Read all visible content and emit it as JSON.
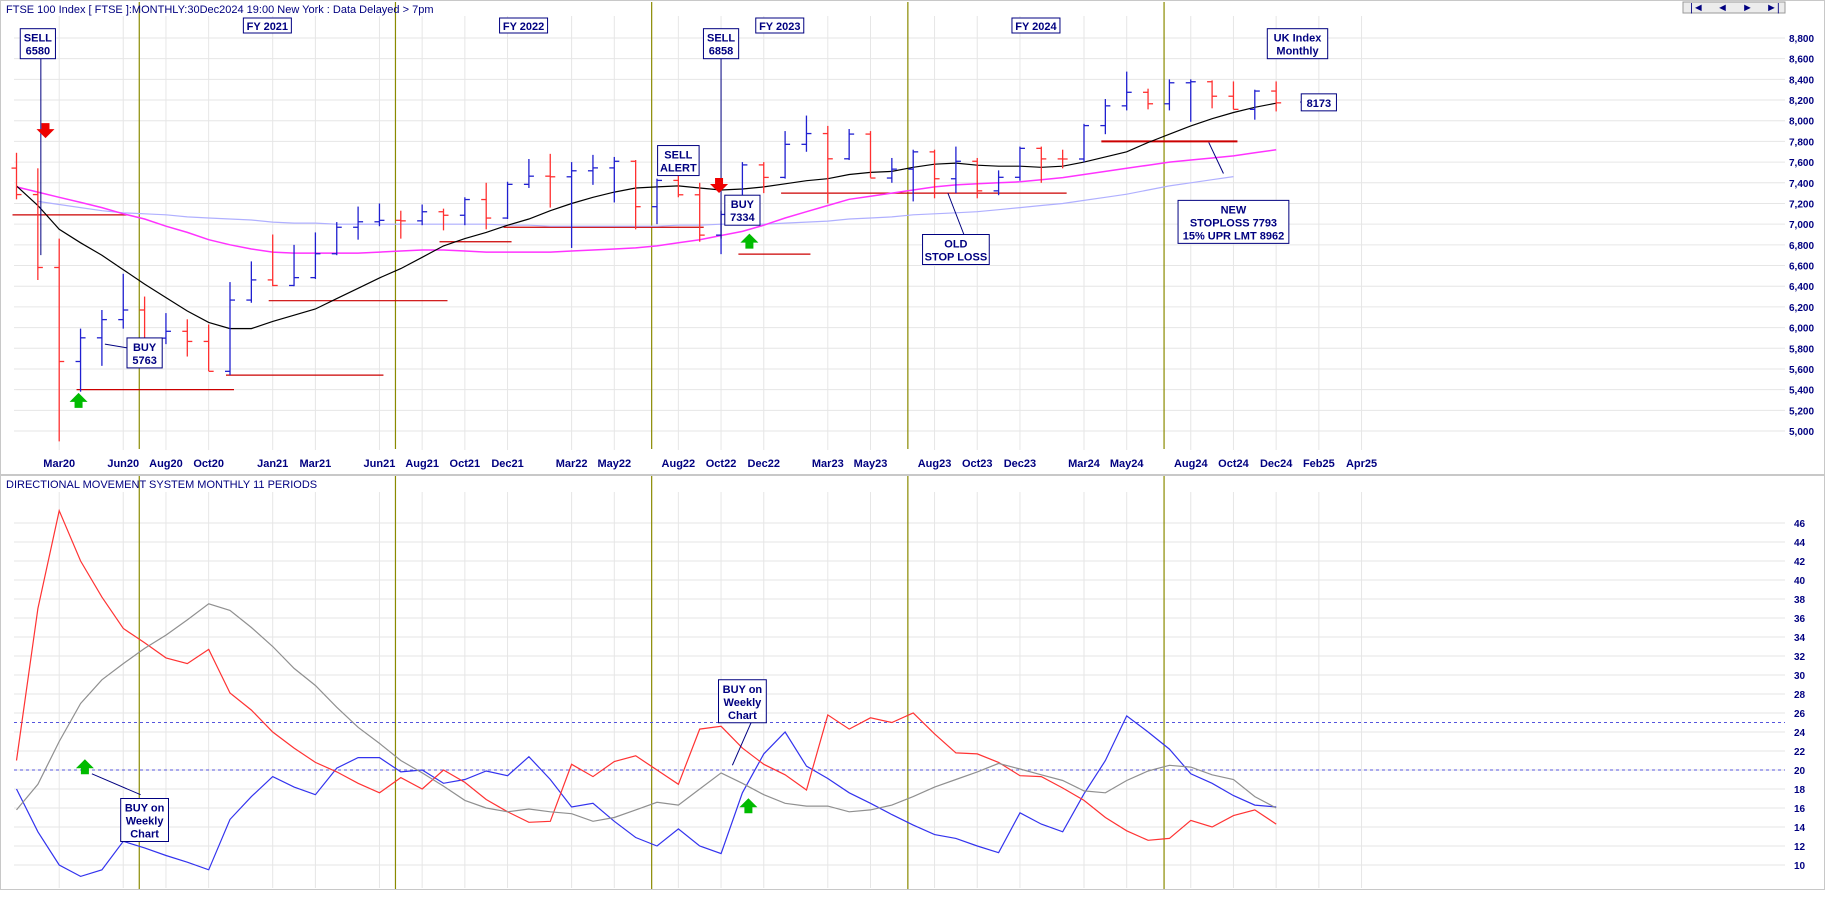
{
  "header": {
    "title": "FTSE 100 Index [ FTSE ]:MONTHLY:30Dec2024 19:00 New York : Data Delayed > 7pm",
    "lower_title": "DIRECTIONAL MOVEMENT SYSTEM MONTHLY 11 PERIODS"
  },
  "nav": {
    "first": "|◄",
    "prev": "◄",
    "next": "►",
    "last": "►|"
  },
  "colors": {
    "background": "#ffffff",
    "grid": "#e6e6e6",
    "axis_text": "#000080",
    "fy_line": "#8a8a00",
    "up_bar": "#2020d0",
    "down_bar": "#ff3030",
    "ma_short": "#000000",
    "ma_mid": "#ff33ff",
    "ma_long": "#b0b0ff",
    "stop_line": "#cc0000",
    "plus_di": "#3333ee",
    "minus_di": "#ff3333",
    "adx": "#909090",
    "dotted_ref": "#5555dd",
    "arrow_up": "#00bb00",
    "arrow_down": "#ee0000"
  },
  "chart_data": [
    {
      "type": "line",
      "title": "FTSE 100 Index [ FTSE ]:MONTHLY:30Dec2024 19:00 New York : Data Delayed > 7pm",
      "price_type": "ohlc-bars",
      "x_ticks": [
        "Mar20",
        "Jun20",
        "Aug20",
        "Oct20",
        "Jan21",
        "Mar21",
        "Jun21",
        "Aug21",
        "Oct21",
        "Dec21",
        "Mar22",
        "May22",
        "Aug22",
        "Oct22",
        "Dec22",
        "Mar23",
        "May23",
        "Aug23",
        "Oct23",
        "Dec23",
        "Mar24",
        "May24",
        "Aug24",
        "Oct24",
        "Dec24",
        "Feb25",
        "Apr25"
      ],
      "ylim": [
        4700,
        9000
      ],
      "y_ticks": [
        "5,000",
        "5,200",
        "5,400",
        "5,600",
        "5,800",
        "6,000",
        "6,200",
        "6,400",
        "6,600",
        "6,800",
        "7,000",
        "7,200",
        "7,400",
        "7,600",
        "7,800",
        "8,000",
        "8,200",
        "8,400",
        "8,600",
        "8,800"
      ],
      "bars": [
        {
          "d": "Jan20",
          "o": 7542,
          "h": 7690,
          "l": 7240,
          "c": 7286
        },
        {
          "d": "Feb20",
          "o": 7286,
          "h": 7540,
          "l": 6460,
          "c": 6581
        },
        {
          "d": "Mar20",
          "o": 6581,
          "h": 6860,
          "l": 4900,
          "c": 5672
        },
        {
          "d": "Apr20",
          "o": 5672,
          "h": 5990,
          "l": 5380,
          "c": 5901
        },
        {
          "d": "May20",
          "o": 5901,
          "h": 6170,
          "l": 5630,
          "c": 6077
        },
        {
          "d": "Jun20",
          "o": 6077,
          "h": 6520,
          "l": 5990,
          "c": 6170
        },
        {
          "d": "Jul20",
          "o": 6170,
          "h": 6300,
          "l": 5870,
          "c": 5898
        },
        {
          "d": "Aug20",
          "o": 5898,
          "h": 6140,
          "l": 5840,
          "c": 5964
        },
        {
          "d": "Sep20",
          "o": 5964,
          "h": 6080,
          "l": 5720,
          "c": 5866
        },
        {
          "d": "Oct20",
          "o": 5866,
          "h": 6030,
          "l": 5580,
          "c": 5577
        },
        {
          "d": "Nov20",
          "o": 5577,
          "h": 6440,
          "l": 5540,
          "c": 6266
        },
        {
          "d": "Dec20",
          "o": 6266,
          "h": 6640,
          "l": 6240,
          "c": 6461
        },
        {
          "d": "Jan21",
          "o": 6461,
          "h": 6900,
          "l": 6400,
          "c": 6407
        },
        {
          "d": "Feb21",
          "o": 6407,
          "h": 6800,
          "l": 6400,
          "c": 6483
        },
        {
          "d": "Mar21",
          "o": 6483,
          "h": 6920,
          "l": 6470,
          "c": 6714
        },
        {
          "d": "Apr21",
          "o": 6714,
          "h": 7020,
          "l": 6700,
          "c": 6970
        },
        {
          "d": "May21",
          "o": 6970,
          "h": 7170,
          "l": 6850,
          "c": 7023
        },
        {
          "d": "Jun21",
          "o": 7023,
          "h": 7200,
          "l": 6980,
          "c": 7037
        },
        {
          "d": "Jul21",
          "o": 7037,
          "h": 7130,
          "l": 6860,
          "c": 7032
        },
        {
          "d": "Aug21",
          "o": 7032,
          "h": 7190,
          "l": 6990,
          "c": 7120
        },
        {
          "d": "Sep21",
          "o": 7120,
          "h": 7150,
          "l": 6940,
          "c": 7086
        },
        {
          "d": "Oct21",
          "o": 7086,
          "h": 7260,
          "l": 6990,
          "c": 7238
        },
        {
          "d": "Nov21",
          "o": 7238,
          "h": 7400,
          "l": 6950,
          "c": 7059
        },
        {
          "d": "Dec21",
          "o": 7059,
          "h": 7410,
          "l": 7050,
          "c": 7385
        },
        {
          "d": "Jan22",
          "o": 7385,
          "h": 7630,
          "l": 7350,
          "c": 7464
        },
        {
          "d": "Feb22",
          "o": 7464,
          "h": 7680,
          "l": 7160,
          "c": 7458
        },
        {
          "d": "Mar22",
          "o": 7458,
          "h": 7600,
          "l": 6770,
          "c": 7516
        },
        {
          "d": "Apr22",
          "o": 7516,
          "h": 7670,
          "l": 7380,
          "c": 7544
        },
        {
          "d": "May22",
          "o": 7544,
          "h": 7650,
          "l": 7210,
          "c": 7608
        },
        {
          "d": "Jun22",
          "o": 7608,
          "h": 7620,
          "l": 6950,
          "c": 7169
        },
        {
          "d": "Jul22",
          "o": 7169,
          "h": 7440,
          "l": 7000,
          "c": 7423
        },
        {
          "d": "Aug22",
          "o": 7423,
          "h": 7560,
          "l": 7260,
          "c": 7284
        },
        {
          "d": "Sep22",
          "o": 7284,
          "h": 7400,
          "l": 6830,
          "c": 6894
        },
        {
          "d": "Oct22",
          "o": 6894,
          "h": 7130,
          "l": 6710,
          "c": 7094
        },
        {
          "d": "Nov22",
          "o": 7094,
          "h": 7600,
          "l": 7060,
          "c": 7573
        },
        {
          "d": "Dec22",
          "o": 7573,
          "h": 7600,
          "l": 7300,
          "c": 7452
        },
        {
          "d": "Jan23",
          "o": 7452,
          "h": 7900,
          "l": 7440,
          "c": 7772
        },
        {
          "d": "Feb23",
          "o": 7772,
          "h": 8050,
          "l": 7700,
          "c": 7876
        },
        {
          "d": "Mar23",
          "o": 7876,
          "h": 7950,
          "l": 7200,
          "c": 7632
        },
        {
          "d": "Apr23",
          "o": 7632,
          "h": 7920,
          "l": 7620,
          "c": 7871
        },
        {
          "d": "May23",
          "o": 7871,
          "h": 7900,
          "l": 7450,
          "c": 7446
        },
        {
          "d": "Jun23",
          "o": 7446,
          "h": 7640,
          "l": 7400,
          "c": 7532
        },
        {
          "d": "Jul23",
          "o": 7532,
          "h": 7720,
          "l": 7220,
          "c": 7699
        },
        {
          "d": "Aug23",
          "o": 7699,
          "h": 7720,
          "l": 7250,
          "c": 7439
        },
        {
          "d": "Sep23",
          "o": 7439,
          "h": 7750,
          "l": 7300,
          "c": 7608
        },
        {
          "d": "Oct23",
          "o": 7608,
          "h": 7640,
          "l": 7250,
          "c": 7322
        },
        {
          "d": "Nov23",
          "o": 7322,
          "h": 7520,
          "l": 7280,
          "c": 7453
        },
        {
          "d": "Dec23",
          "o": 7453,
          "h": 7750,
          "l": 7420,
          "c": 7733
        },
        {
          "d": "Jan24",
          "o": 7733,
          "h": 7750,
          "l": 7400,
          "c": 7631
        },
        {
          "d": "Feb24",
          "o": 7631,
          "h": 7720,
          "l": 7540,
          "c": 7630
        },
        {
          "d": "Mar24",
          "o": 7630,
          "h": 7970,
          "l": 7600,
          "c": 7953
        },
        {
          "d": "Apr24",
          "o": 7953,
          "h": 8210,
          "l": 7870,
          "c": 8144
        },
        {
          "d": "May24",
          "o": 8144,
          "h": 8475,
          "l": 8100,
          "c": 8275
        },
        {
          "d": "Jun24",
          "o": 8275,
          "h": 8310,
          "l": 8110,
          "c": 8164
        },
        {
          "d": "Jul24",
          "o": 8164,
          "h": 8400,
          "l": 8100,
          "c": 8367
        },
        {
          "d": "Aug24",
          "o": 8367,
          "h": 8400,
          "l": 7990,
          "c": 8377
        },
        {
          "d": "Sep24",
          "o": 8377,
          "h": 8390,
          "l": 8120,
          "c": 8237
        },
        {
          "d": "Oct24",
          "o": 8237,
          "h": 8380,
          "l": 8110,
          "c": 8110
        },
        {
          "d": "Nov24",
          "o": 8110,
          "h": 8300,
          "l": 8010,
          "c": 8287
        },
        {
          "d": "Dec24",
          "o": 8287,
          "h": 8380,
          "l": 8090,
          "c": 8173
        }
      ],
      "ma_short": {
        "start": "Jan20",
        "values": [
          7370,
          7180,
          6950,
          6820,
          6700,
          6560,
          6420,
          6290,
          6160,
          6050,
          5990,
          5990,
          6060,
          6120,
          6180,
          6280,
          6380,
          6480,
          6570,
          6680,
          6790,
          6860,
          6920,
          6990,
          7050,
          7130,
          7200,
          7260,
          7310,
          7350,
          7360,
          7370,
          7350,
          7330,
          7340,
          7360,
          7390,
          7420,
          7440,
          7480,
          7500,
          7510,
          7550,
          7580,
          7590,
          7570,
          7560,
          7560,
          7550,
          7560,
          7600,
          7650,
          7700,
          7790,
          7870,
          7950,
          8020,
          8080,
          8130,
          8170
        ]
      },
      "ma_mid": {
        "start": "Jan20",
        "values": [
          7360,
          7310,
          7260,
          7210,
          7160,
          7100,
          7050,
          6980,
          6920,
          6850,
          6800,
          6760,
          6730,
          6720,
          6720,
          6720,
          6720,
          6730,
          6740,
          6750,
          6750,
          6740,
          6730,
          6730,
          6730,
          6730,
          6740,
          6750,
          6760,
          6770,
          6790,
          6820,
          6850,
          6890,
          6930,
          6990,
          7060,
          7120,
          7180,
          7240,
          7270,
          7300,
          7330,
          7360,
          7380,
          7390,
          7400,
          7410,
          7430,
          7450,
          7480,
          7510,
          7540,
          7570,
          7600,
          7620,
          7640,
          7660,
          7690,
          7720
        ]
      },
      "ma_long": {
        "start": "Feb20",
        "values": [
          7220,
          7190,
          7160,
          7130,
          7110,
          7100,
          7090,
          7070,
          7060,
          7050,
          7040,
          7020,
          7010,
          7010,
          7000,
          7000,
          7000,
          7000,
          7000,
          7000,
          7000,
          7000,
          6990,
          6990,
          6980,
          6980,
          6980,
          6980,
          6980,
          6980,
          6990,
          6990,
          7000,
          7000,
          7000,
          7010,
          7020,
          7030,
          7050,
          7060,
          7070,
          7090,
          7100,
          7110,
          7120,
          7140,
          7160,
          7180,
          7200,
          7230,
          7260,
          7290,
          7330,
          7370,
          7400,
          7430,
          7460
        ]
      },
      "stop_lines": [
        {
          "from": "Jan20",
          "to": "Jun20",
          "y": 7090
        },
        {
          "from": "Apr20",
          "to": "Nov20",
          "y": 5400
        },
        {
          "from": "Nov20",
          "to": "Jun21",
          "y": 5540
        },
        {
          "from": "Jan21",
          "to": "Sep21",
          "y": 6260
        },
        {
          "from": "Sep21",
          "to": "Dec21",
          "y": 6830
        },
        {
          "from": "Dec21",
          "to": "Sep22",
          "y": 6970
        },
        {
          "from": "Nov22",
          "to": "Feb23",
          "y": 6710
        },
        {
          "from": "Jan23",
          "to": "Feb24",
          "y": 7300
        },
        {
          "from": "Apr24",
          "to": "Oct24",
          "y": 7800
        }
      ],
      "annotations": [
        {
          "id": "sell_6580",
          "lines": [
            "SELL",
            "6580"
          ],
          "at": "Feb20",
          "y": 8890
        },
        {
          "id": "buy_5763",
          "lines": [
            "BUY",
            "5763"
          ],
          "at": "Jul20",
          "y": 5900
        },
        {
          "id": "sell_alert",
          "lines": [
            "SELL",
            "ALERT"
          ],
          "at": "Aug22",
          "y": 7760
        },
        {
          "id": "sell_6858",
          "lines": [
            "SELL",
            "6858"
          ],
          "at": "Oct22",
          "y": 8890
        },
        {
          "id": "buy_7334",
          "lines": [
            "BUY",
            "7334"
          ],
          "at": "Nov22",
          "y": 7280
        },
        {
          "id": "old_stop",
          "lines": [
            "OLD",
            "STOP LOSS"
          ],
          "at": "Sep23",
          "y": 6900
        },
        {
          "id": "new_stop",
          "lines": [
            "NEW",
            "STOPLOSS 7793",
            "15% UPR LMT 8962"
          ],
          "at": "Oct24",
          "y": 7230
        },
        {
          "id": "uk_index",
          "lines": [
            "UK Index",
            "Monthly"
          ],
          "at": "Jan25",
          "y": 8890
        },
        {
          "id": "last_price",
          "lines": [
            "8173"
          ],
          "at": "Feb25",
          "y": 8260
        }
      ],
      "fy_labels": [
        "FY 2021",
        "FY 2022",
        "FY 2023",
        "FY 2024"
      ]
    },
    {
      "type": "line",
      "title": "DIRECTIONAL MOVEMENT SYSTEM MONTHLY 11 PERIODS",
      "ylim": [
        7.5,
        50
      ],
      "y_ticks": [
        "10",
        "12",
        "14",
        "16",
        "18",
        "20",
        "22",
        "24",
        "26",
        "28",
        "30",
        "32",
        "34",
        "36",
        "38",
        "40",
        "42",
        "44",
        "46"
      ],
      "reference_lines": [
        20,
        25
      ],
      "series": [
        {
          "key": "plus_di",
          "values": [
            18.0,
            13.5,
            10.0,
            8.8,
            9.5,
            12.5,
            11.8,
            11.0,
            10.3,
            9.5,
            14.8,
            17.2,
            19.3,
            18.2,
            17.4,
            20.2,
            21.3,
            21.3,
            19.8,
            20.0,
            18.6,
            19.0,
            19.9,
            19.4,
            21.4,
            19.0,
            16.1,
            16.5,
            14.6,
            12.9,
            12.0,
            13.8,
            12.0,
            11.2,
            17.6,
            21.7,
            24.0,
            20.4,
            19.1,
            17.6,
            16.5,
            15.3,
            14.2,
            13.2,
            12.8,
            12.0,
            11.3,
            15.5,
            14.3,
            13.5,
            17.5,
            21.0,
            25.7,
            24.0,
            22.2,
            19.6,
            18.6,
            17.3,
            16.3,
            16.1
          ]
        },
        {
          "key": "minus_di",
          "values": [
            21.0,
            37.0,
            47.3,
            42.0,
            38.2,
            34.9,
            33.4,
            31.8,
            31.2,
            32.7,
            28.1,
            26.3,
            24.0,
            22.3,
            20.8,
            19.8,
            18.6,
            17.6,
            19.2,
            18.0,
            20.0,
            18.7,
            16.9,
            15.6,
            14.5,
            14.6,
            20.6,
            19.3,
            20.9,
            21.5,
            20.0,
            18.5,
            24.3,
            24.6,
            22.3,
            20.6,
            19.5,
            17.9,
            25.8,
            24.3,
            25.5,
            25.0,
            26.0,
            23.8,
            21.8,
            21.7,
            20.8,
            19.4,
            19.3,
            18.1,
            16.8,
            15.0,
            13.6,
            12.6,
            12.8,
            14.7,
            14.0,
            15.2,
            15.8,
            14.3
          ]
        },
        {
          "key": "adx",
          "values": [
            15.8,
            18.5,
            23.0,
            27.0,
            29.5,
            31.2,
            32.8,
            34.2,
            35.8,
            37.5,
            36.8,
            35.0,
            33.0,
            30.7,
            28.9,
            26.6,
            24.5,
            22.8,
            21.0,
            19.7,
            18.3,
            16.8,
            16.0,
            15.6,
            15.9,
            15.6,
            15.4,
            14.6,
            15.0,
            15.8,
            16.6,
            16.3,
            18.0,
            19.7,
            18.6,
            17.4,
            16.5,
            16.2,
            16.2,
            15.6,
            15.8,
            16.3,
            17.2,
            18.2,
            19.0,
            19.8,
            20.7,
            20.1,
            19.5,
            18.9,
            17.8,
            17.6,
            18.9,
            19.9,
            20.5,
            20.3,
            19.5,
            19.0,
            17.2,
            16.0
          ]
        }
      ],
      "annotations": [
        {
          "id": "buy_weekly_1",
          "lines": [
            "BUY on",
            "Weekly",
            "Chart"
          ],
          "at": "Jul20",
          "y": 17.0
        },
        {
          "id": "buy_weekly_2",
          "lines": [
            "BUY on",
            "Weekly",
            "Chart"
          ],
          "at": "Nov22",
          "y": 29.5
        }
      ]
    }
  ]
}
